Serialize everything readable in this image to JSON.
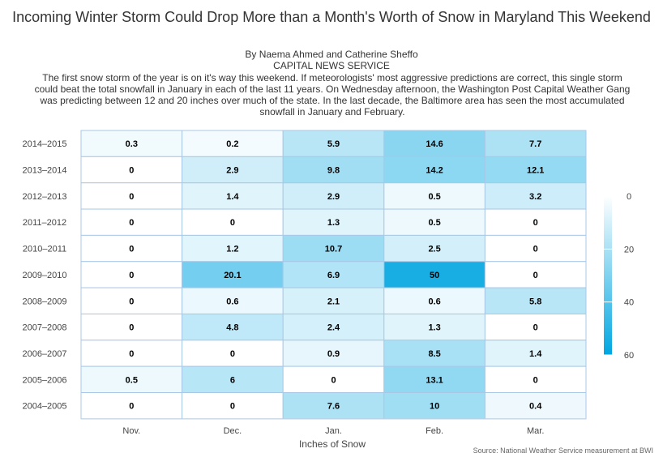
{
  "header": {
    "title": "Incoming Winter Storm Could Drop More than a Month's Worth of Snow in Maryland This Weekend",
    "byline": "By Naema Ahmed and Catherine Sheffo",
    "organization": "CAPITAL NEWS SERVICE",
    "intro": "The first snow storm of the year is on it's way this weekend. If meteorologists' most aggressive predictions are correct, this single storm could beat the total snowfall in January in each of the last 11 years. On Wednesday afternoon, the Washington Post Capital Weather Gang was predicting between 12 and 20 inches over much of the state. In the last decade, the Baltimore area has seen the most accumulated snowfall in January and February."
  },
  "chart_data": {
    "type": "heatmap",
    "x_categories": [
      "Nov.",
      "Dec.",
      "Jan.",
      "Feb.",
      "Mar."
    ],
    "y_categories": [
      "2014–2015",
      "2013–2014",
      "2012–2013",
      "2011–2012",
      "2010–2011",
      "2009–2010",
      "2008–2009",
      "2007–2008",
      "2006–2007",
      "2005–2006",
      "2004–2005"
    ],
    "values": [
      [
        0.3,
        0.2,
        5.9,
        14.6,
        7.7
      ],
      [
        0,
        2.9,
        9.8,
        14.2,
        12.1
      ],
      [
        0,
        1.4,
        2.9,
        0.5,
        3.2
      ],
      [
        0,
        0,
        1.3,
        0.5,
        0
      ],
      [
        0,
        1.2,
        10.7,
        2.5,
        0
      ],
      [
        0,
        20.1,
        6.9,
        50,
        0
      ],
      [
        0,
        0.6,
        2.1,
        0.6,
        5.8
      ],
      [
        0,
        4.8,
        2.4,
        1.3,
        0
      ],
      [
        0,
        0,
        0.9,
        8.5,
        1.4
      ],
      [
        0.5,
        6,
        0,
        13.1,
        0
      ],
      [
        0,
        0,
        7.6,
        10,
        0.4
      ]
    ],
    "xlabel": "Inches of Snow",
    "ylabel": "",
    "color_axis": {
      "min": 0,
      "max": 60,
      "ticks": [
        0,
        20,
        40,
        60
      ],
      "min_color": "#ffffff",
      "max_color": "#00a6e1"
    },
    "legend_position": "right",
    "source": "Source: National Weather Service measurement at BWI"
  }
}
